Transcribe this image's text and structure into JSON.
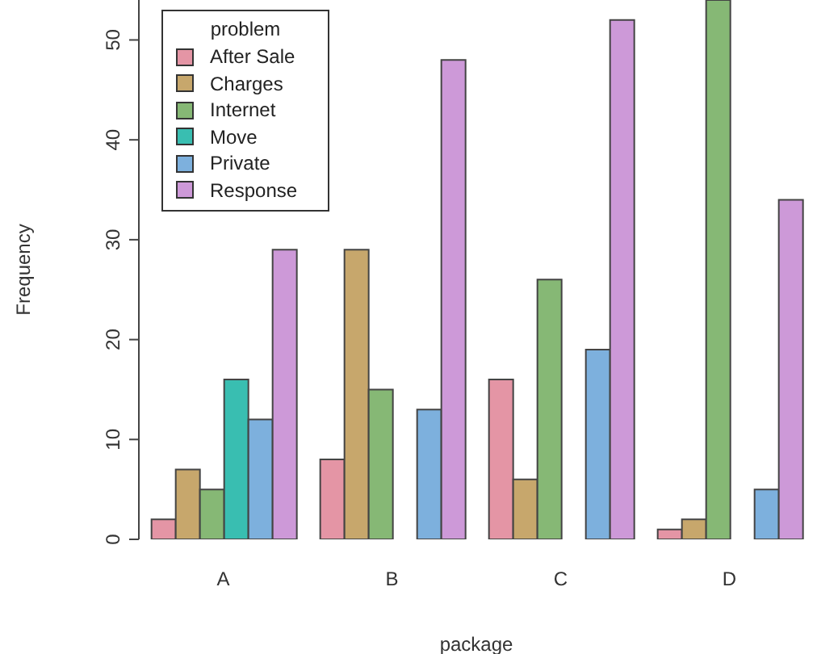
{
  "chart_data": {
    "type": "bar",
    "xlabel": "package",
    "ylabel": "Frequency",
    "legend_title": "problem",
    "legend": "top left",
    "categories": [
      "A",
      "B",
      "C",
      "D"
    ],
    "series": [
      {
        "name": "After Sale",
        "color": "#e495a5",
        "values": [
          2,
          8,
          16,
          1
        ]
      },
      {
        "name": "Charges",
        "color": "#c7a76c",
        "values": [
          7,
          29,
          6,
          2
        ]
      },
      {
        "name": "Internet",
        "color": "#86b875",
        "values": [
          5,
          15,
          26,
          54
        ]
      },
      {
        "name": "Move",
        "color": "#39beb1",
        "values": [
          16,
          0,
          0,
          0
        ]
      },
      {
        "name": "Private",
        "color": "#7db0dd",
        "values": [
          12,
          13,
          19,
          5
        ]
      },
      {
        "name": "Response",
        "color": "#cd99d8",
        "values": [
          29,
          48,
          52,
          34
        ]
      }
    ],
    "ylim": [
      0,
      54
    ],
    "yticks": [
      0,
      10,
      20,
      30,
      40,
      50
    ]
  }
}
